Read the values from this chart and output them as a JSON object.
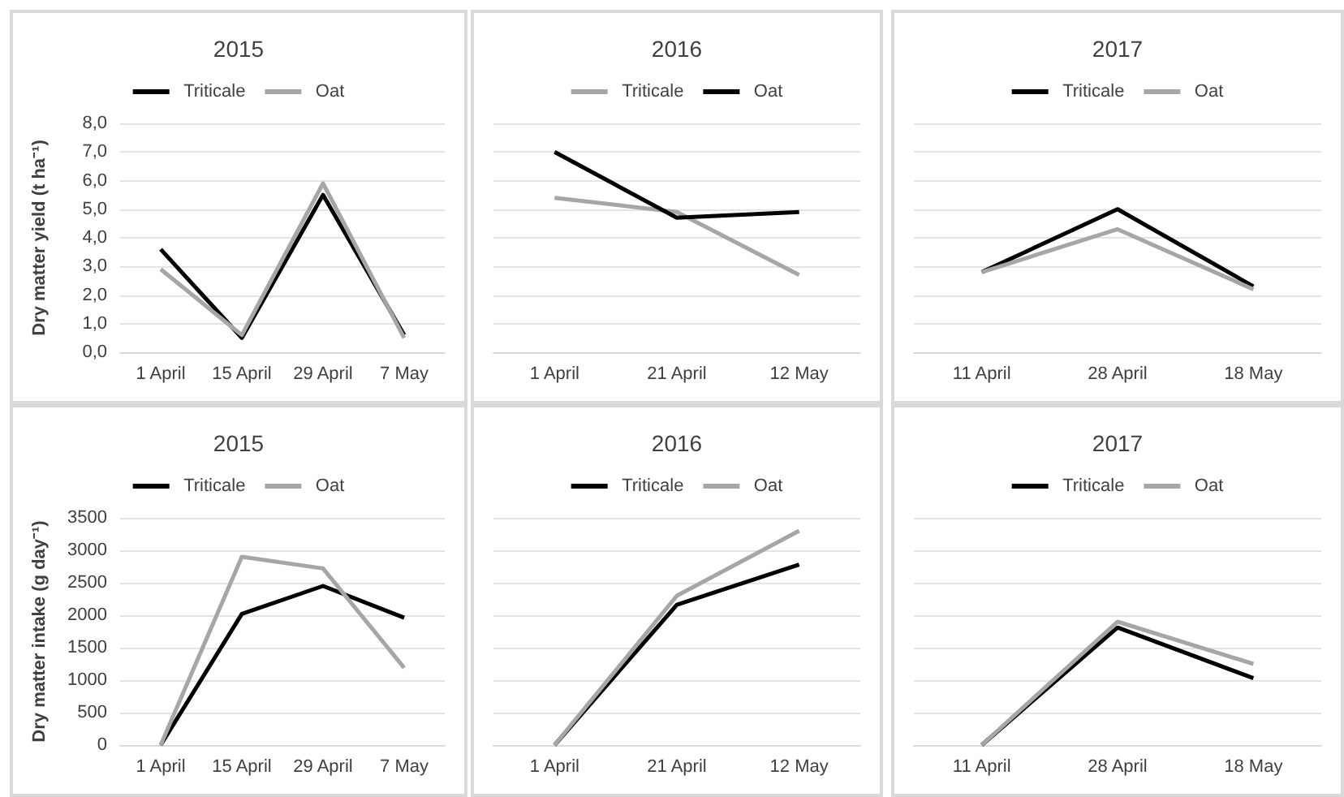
{
  "chart_data": [
    {
      "type": "line",
      "title": "2015",
      "ylabel": "Dry matter yield (t ha⁻¹)",
      "categories": [
        "1 April",
        "15 April",
        "29 April",
        "7 May"
      ],
      "series": [
        {
          "name": "Triticale",
          "color": "#000000",
          "values": [
            3.6,
            0.5,
            5.5,
            0.6
          ]
        },
        {
          "name": "Oat",
          "color": "#a6a6a6",
          "values": [
            2.9,
            0.6,
            5.9,
            0.5
          ]
        }
      ],
      "ylim": [
        0,
        8
      ],
      "yticks": [
        {
          "value": 0,
          "label": "0,0"
        },
        {
          "value": 1,
          "label": "1,0"
        },
        {
          "value": 2,
          "label": "2,0"
        },
        {
          "value": 3,
          "label": "3,0"
        },
        {
          "value": 4,
          "label": "4,0"
        },
        {
          "value": 5,
          "label": "5,0"
        },
        {
          "value": 6,
          "label": "6,0"
        },
        {
          "value": 7,
          "label": "7,0"
        },
        {
          "value": 8,
          "label": "8,0"
        }
      ],
      "grid": "y",
      "legend": "top",
      "marker": "none"
    },
    {
      "type": "line",
      "title": "2016",
      "categories": [
        "1 April",
        "21 April",
        "12 May"
      ],
      "series": [
        {
          "name": "Triticale",
          "color": "#a6a6a6",
          "values": [
            5.4,
            4.9,
            2.7
          ]
        },
        {
          "name": "Oat",
          "color": "#000000",
          "values": [
            7.0,
            4.7,
            4.9
          ]
        }
      ],
      "ylim": [
        0,
        8
      ],
      "yticks": [
        0,
        1,
        2,
        3,
        4,
        5,
        6,
        7,
        8
      ],
      "grid": "y",
      "legend": "top",
      "marker": "none",
      "tick_labels": "x"
    },
    {
      "type": "line",
      "title": "2017",
      "categories": [
        "11 April",
        "28 April",
        "18 May"
      ],
      "series": [
        {
          "name": "Triticale",
          "color": "#000000",
          "values": [
            2.8,
            5.0,
            2.3
          ]
        },
        {
          "name": "Oat",
          "color": "#a6a6a6",
          "values": [
            2.8,
            4.3,
            2.2
          ]
        }
      ],
      "ylim": [
        0,
        8
      ],
      "yticks": [
        0,
        1,
        2,
        3,
        4,
        5,
        6,
        7,
        8
      ],
      "grid": "y",
      "legend": "top",
      "marker": "none",
      "tick_labels": "x"
    },
    {
      "type": "line",
      "title": "2015",
      "ylabel": "Dry matter intake (g day⁻¹)",
      "categories": [
        "1 April",
        "15 April",
        "29 April",
        "7 May"
      ],
      "series": [
        {
          "name": "Triticale",
          "color": "#000000",
          "values": [
            0,
            2020,
            2450,
            1960
          ]
        },
        {
          "name": "Oat",
          "color": "#a6a6a6",
          "values": [
            0,
            2900,
            2720,
            1190
          ]
        }
      ],
      "ylim": [
        0,
        3500
      ],
      "yticks": [
        0,
        500,
        1000,
        1500,
        2000,
        2500,
        3000,
        3500
      ],
      "grid": "y",
      "legend": "top",
      "marker": "none"
    },
    {
      "type": "line",
      "title": "2016",
      "categories": [
        "1 April",
        "21 April",
        "12 May"
      ],
      "series": [
        {
          "name": "Triticale",
          "color": "#000000",
          "values": [
            0,
            2160,
            2780
          ]
        },
        {
          "name": "Oat",
          "color": "#a6a6a6",
          "values": [
            0,
            2300,
            3300
          ]
        }
      ],
      "ylim": [
        0,
        3500
      ],
      "yticks": [
        0,
        500,
        1000,
        1500,
        2000,
        2500,
        3000,
        3500
      ],
      "grid": "y",
      "legend": "top",
      "marker": "none",
      "tick_labels": "x"
    },
    {
      "type": "line",
      "title": "2017",
      "categories": [
        "11 April",
        "28 April",
        "18 May"
      ],
      "series": [
        {
          "name": "Triticale",
          "color": "#000000",
          "values": [
            0,
            1810,
            1030
          ]
        },
        {
          "name": "Oat",
          "color": "#a6a6a6",
          "values": [
            0,
            1900,
            1250
          ]
        }
      ],
      "ylim": [
        0,
        3500
      ],
      "yticks": [
        0,
        500,
        1000,
        1500,
        2000,
        2500,
        3000,
        3500
      ],
      "grid": "y",
      "legend": "top",
      "marker": "none",
      "tick_labels": "x"
    }
  ]
}
